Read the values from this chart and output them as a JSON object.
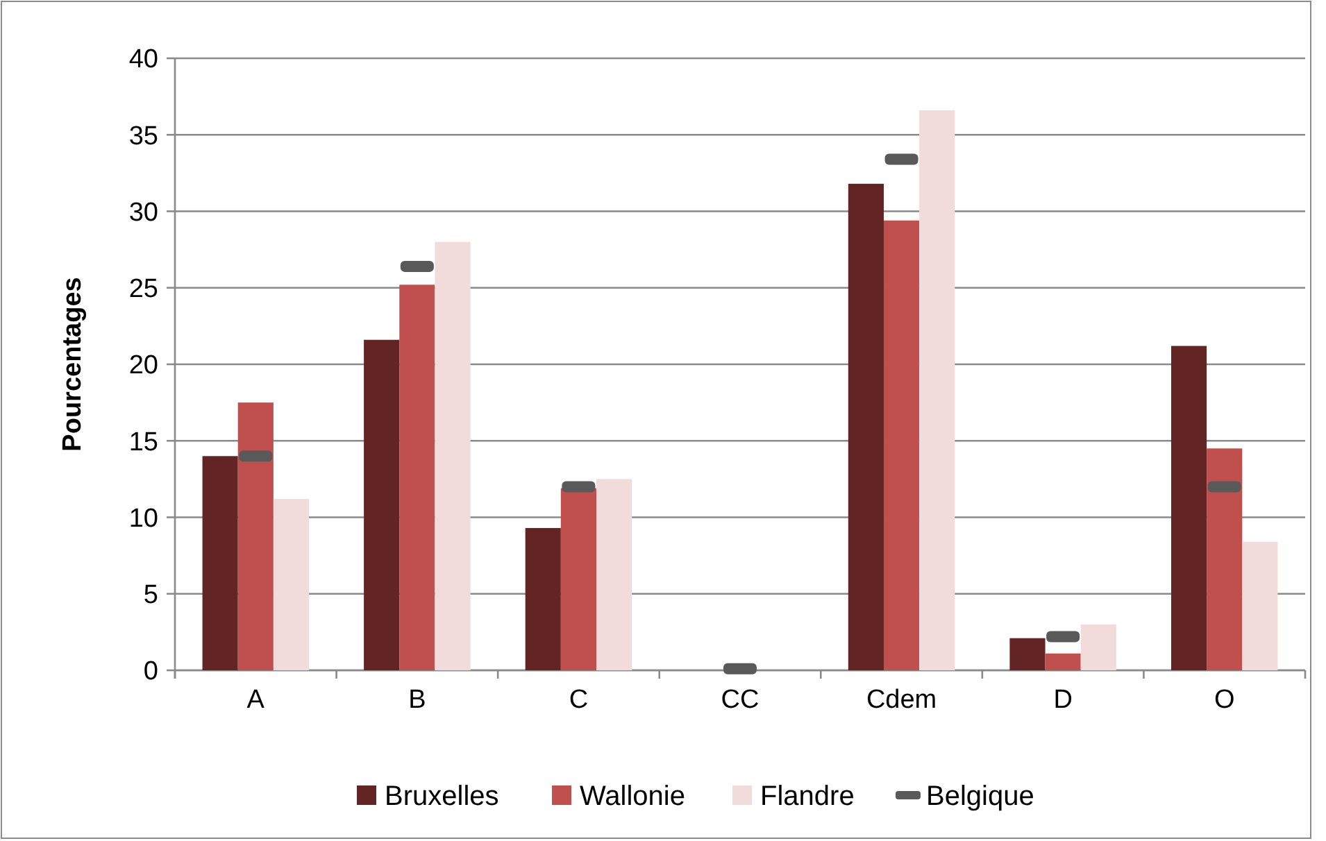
{
  "chart_data": {
    "type": "bar",
    "ylabel": "Pourcentages",
    "categories": [
      "A",
      "B",
      "C",
      "CC",
      "Cdem",
      "D",
      "O"
    ],
    "series": [
      {
        "name": "Bruxelles",
        "color": "#632523",
        "values": [
          14.0,
          21.6,
          9.3,
          0,
          31.8,
          2.1,
          21.2
        ]
      },
      {
        "name": "Wallonie",
        "color": "#c0504d",
        "values": [
          17.5,
          25.2,
          11.9,
          0,
          29.4,
          1.1,
          14.5
        ]
      },
      {
        "name": "Flandre",
        "color": "#f2dcdb",
        "values": [
          11.2,
          28.0,
          12.5,
          0,
          36.6,
          3.0,
          8.4
        ]
      },
      {
        "name": "Belgique",
        "type": "scatter",
        "color": "#595959",
        "values": [
          14.0,
          26.4,
          12.0,
          0.1,
          33.4,
          2.2,
          12.0
        ]
      }
    ],
    "ylim": [
      0,
      40
    ],
    "yticks": [
      0,
      5,
      10,
      15,
      20,
      25,
      30,
      35,
      40
    ],
    "grid": "y",
    "legend": "bottom"
  }
}
